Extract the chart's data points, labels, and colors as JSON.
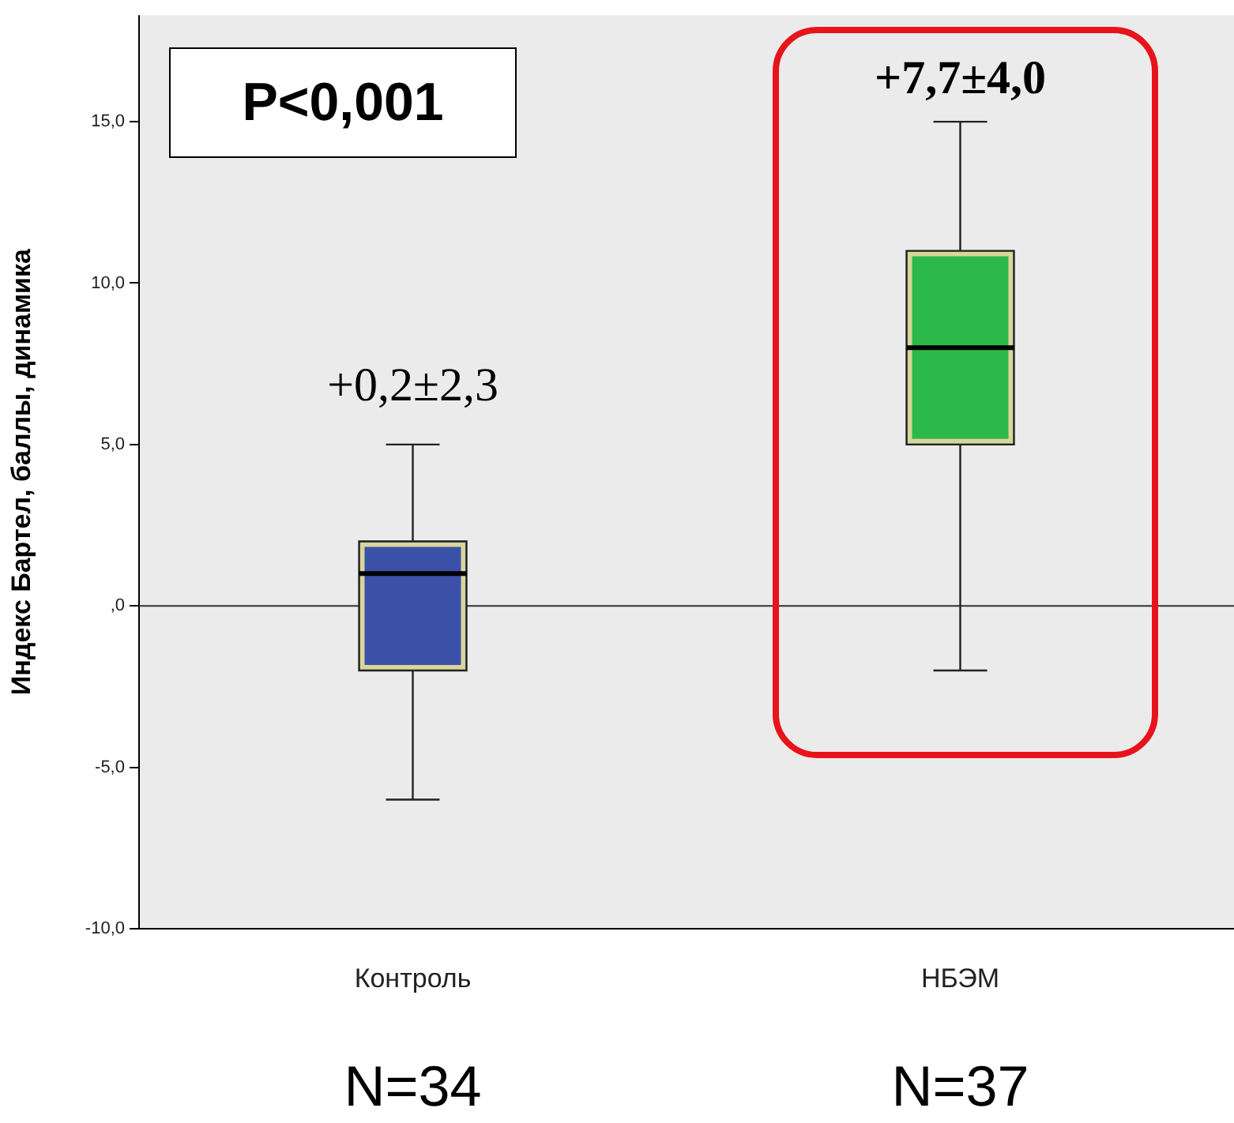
{
  "chart_data": {
    "type": "box",
    "ylabel": "Индекс Бартел, баллы, динамика",
    "categories": [
      "Контроль",
      "НБЭМ"
    ],
    "boxes": [
      {
        "low": -6,
        "q1": -2,
        "median": 1,
        "q3": 2,
        "high": 5
      },
      {
        "low": -2,
        "q1": 5,
        "median": 8,
        "q3": 11,
        "high": 15
      }
    ],
    "colors": [
      "#3b51a8",
      "#2db84a"
    ],
    "ylim": [
      -10,
      18.3
    ],
    "yticks": [
      {
        "value": -10,
        "label": "-10,0"
      },
      {
        "value": -5,
        "label": "-5,0"
      },
      {
        "value": 0,
        "label": ",0"
      },
      {
        "value": 5,
        "label": "5,0"
      },
      {
        "value": 10,
        "label": "10,0"
      },
      {
        "value": 15,
        "label": "15,0"
      }
    ],
    "ref_lines": [
      {
        "axis": "y",
        "value": 0
      }
    ],
    "annotations": [
      "P<0,001",
      "+0,2±2,3",
      "+7,7±4,0",
      "N=34",
      "N=37"
    ],
    "legend": false
  }
}
